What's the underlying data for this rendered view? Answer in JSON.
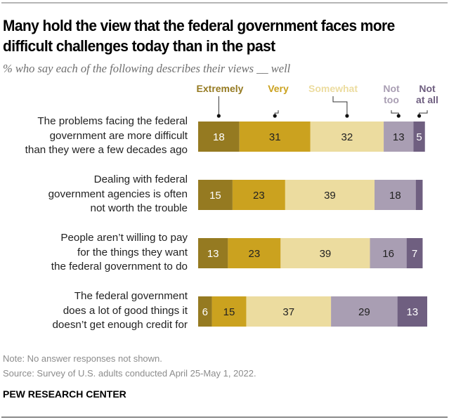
{
  "title": "Many hold the view that the federal government faces more difficult challenges today than in the past",
  "subtitle": "% who say each of the following describes their views __ well",
  "chart_data": {
    "type": "bar",
    "orientation": "horizontal-stacked",
    "categories": [
      "The problems facing the federal government are more difficult than they were a few decades ago",
      "Dealing with federal government agencies is often not worth the trouble",
      "People aren’t willing to pay for the things they want the federal government to do",
      "The federal government does a lot of good things it doesn’t get enough credit for"
    ],
    "category_lines": [
      [
        "The problems facing the federal",
        "government are more difficult",
        "than they were a few decades ago"
      ],
      [
        "Dealing with federal",
        "government agencies is often",
        "not worth the trouble"
      ],
      [
        "People aren’t willing to pay",
        "for the things they want",
        "the federal government to do"
      ],
      [
        "The federal government",
        "does a lot of good things it",
        "doesn’t get enough credit for"
      ]
    ],
    "series": [
      {
        "name": "Extremely",
        "legend_lines": [
          "Extremely"
        ],
        "color": "#957a21",
        "label_color": "#ffffff",
        "values": [
          18,
          15,
          13,
          6
        ]
      },
      {
        "name": "Very",
        "legend_lines": [
          "Very"
        ],
        "color": "#cba21f",
        "label_color": "#222222",
        "values": [
          31,
          23,
          23,
          15
        ]
      },
      {
        "name": "Somewhat",
        "legend_lines": [
          "Somewhat"
        ],
        "color": "#ecdc9f",
        "label_color": "#222222",
        "values": [
          32,
          39,
          39,
          37
        ]
      },
      {
        "name": "Not too",
        "legend_lines": [
          "Not",
          "too"
        ],
        "color": "#a99eb3",
        "label_color": "#222222",
        "values": [
          13,
          18,
          16,
          29
        ]
      },
      {
        "name": "Not at all",
        "legend_lines": [
          "Not",
          "at all"
        ],
        "color": "#6f5f80",
        "label_color": "#ffffff",
        "values": [
          5,
          3,
          7,
          13
        ]
      }
    ],
    "value_labels": [
      [
        "18",
        "31",
        "32",
        "13",
        "5"
      ],
      [
        "15",
        "23",
        "39",
        "18",
        ""
      ],
      [
        "13",
        "23",
        "39",
        "16",
        "7"
      ],
      [
        "6",
        "15",
        "37",
        "29",
        "13"
      ]
    ],
    "legend_text_colors": [
      "#957a21",
      "#cba21f",
      "#ecdc9f",
      "#a99eb3",
      "#6f5f80"
    ],
    "legend_placement": "top, above first bar",
    "xlim": [
      0,
      100
    ],
    "grid": false
  },
  "footer": {
    "note": "Note: No answer responses not shown.",
    "source": "Source: Survey of U.S. adults conducted April 25-May 1, 2022.",
    "brand": "PEW RESEARCH CENTER"
  }
}
